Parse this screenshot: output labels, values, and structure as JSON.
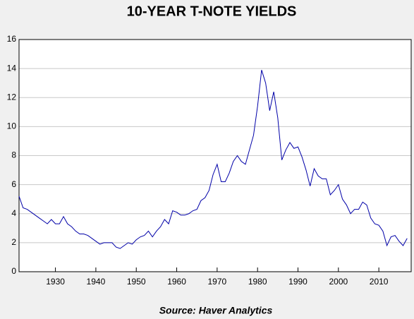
{
  "chart_data": {
    "type": "line",
    "title": "10-YEAR T-NOTE YIELDS",
    "source": "Source:  Haver Analytics",
    "x": [
      1921,
      1922,
      1923,
      1924,
      1925,
      1926,
      1927,
      1928,
      1929,
      1930,
      1931,
      1932,
      1933,
      1934,
      1935,
      1936,
      1937,
      1938,
      1939,
      1940,
      1941,
      1942,
      1943,
      1944,
      1945,
      1946,
      1947,
      1948,
      1949,
      1950,
      1951,
      1952,
      1953,
      1954,
      1955,
      1956,
      1957,
      1958,
      1959,
      1960,
      1961,
      1962,
      1963,
      1964,
      1965,
      1966,
      1967,
      1968,
      1969,
      1970,
      1971,
      1972,
      1973,
      1974,
      1975,
      1976,
      1977,
      1978,
      1979,
      1980,
      1981,
      1982,
      1983,
      1984,
      1985,
      1986,
      1987,
      1988,
      1989,
      1990,
      1991,
      1992,
      1993,
      1994,
      1995,
      1996,
      1997,
      1998,
      1999,
      2000,
      2001,
      2002,
      2003,
      2004,
      2005,
      2006,
      2007,
      2008,
      2009,
      2010,
      2011,
      2012,
      2013,
      2014,
      2015,
      2016,
      2017
    ],
    "values": [
      5.2,
      4.4,
      4.3,
      4.1,
      3.9,
      3.7,
      3.5,
      3.3,
      3.6,
      3.3,
      3.3,
      3.8,
      3.3,
      3.1,
      2.8,
      2.6,
      2.6,
      2.5,
      2.3,
      2.1,
      1.9,
      2.0,
      2.0,
      2.0,
      1.7,
      1.6,
      1.8,
      2.0,
      1.9,
      2.2,
      2.4,
      2.5,
      2.8,
      2.4,
      2.8,
      3.1,
      3.6,
      3.3,
      4.2,
      4.1,
      3.9,
      3.9,
      4.0,
      4.2,
      4.3,
      4.9,
      5.1,
      5.6,
      6.7,
      7.4,
      6.2,
      6.2,
      6.8,
      7.6,
      8.0,
      7.6,
      7.4,
      8.4,
      9.4,
      11.4,
      13.9,
      13.0,
      11.1,
      12.4,
      10.6,
      7.7,
      8.4,
      8.9,
      8.5,
      8.6,
      7.9,
      7.0,
      5.9,
      7.1,
      6.6,
      6.4,
      6.4,
      5.3,
      5.6,
      6.0,
      5.0,
      4.6,
      4.0,
      4.3,
      4.3,
      4.8,
      4.6,
      3.7,
      3.3,
      3.2,
      2.8,
      1.8,
      2.4,
      2.5,
      2.1,
      1.8,
      2.3
    ],
    "color": "#0000a8",
    "xlim": [
      1921,
      2018
    ],
    "xticks": [
      1930,
      1940,
      1950,
      1960,
      1970,
      1980,
      1990,
      2000,
      2010
    ],
    "ylim": [
      0,
      16
    ],
    "yticks": [
      0,
      2,
      4,
      6,
      8,
      10,
      12,
      14,
      16
    ],
    "grid": true
  }
}
